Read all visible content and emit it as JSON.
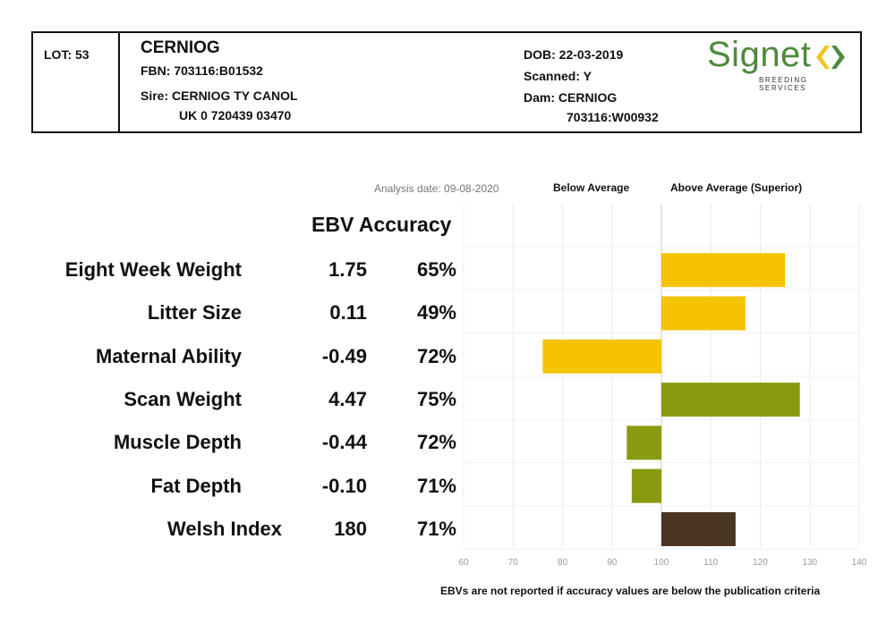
{
  "header": {
    "lot": "LOT: 53",
    "name": "CERNIOG",
    "fbn": "FBN: 703116:B01532",
    "sire": "Sire: CERNIOG TY CANOL",
    "sire_id": "UK 0 720439 03470",
    "dob": "DOB: 22-03-2019",
    "scanned": "Scanned: Y",
    "dam": "Dam: CERNIOG",
    "dam_id": "703116:W00932",
    "logo_word": "Signet",
    "logo_sub": "BREEDING SERVICES",
    "logo_green": "#4d8a3c",
    "logo_yellow": "#f0c419"
  },
  "analysis_date": "Analysis date: 09-08-2020",
  "below_label": "Below Average",
  "above_label": "Above Average (Superior)",
  "column_header": "EBV Accuracy",
  "footnote": "EBVs are not reported if accuracy values are below the publication criteria",
  "chart_data": {
    "type": "bar",
    "orientation": "horizontal",
    "baseline": 100,
    "xlim": [
      60,
      140
    ],
    "xticks": [
      "60",
      "70",
      "80",
      "90",
      "100",
      "110",
      "120",
      "130",
      "140"
    ],
    "grid": true,
    "categories": [
      "Eight Week Weight",
      "Litter Size",
      "Maternal Ability",
      "Scan Weight",
      "Muscle Depth",
      "Fat Depth",
      "Welsh Index"
    ],
    "ebv": [
      "1.75",
      "0.11",
      "-0.49",
      "4.47",
      "-0.44",
      "-0.10",
      "180"
    ],
    "accuracy": [
      "65%",
      "49%",
      "72%",
      "75%",
      "72%",
      "71%",
      "71%"
    ],
    "values": [
      125,
      117,
      76,
      128,
      93,
      94,
      115
    ],
    "colors": [
      "#f5c400",
      "#f5c400",
      "#f5c400",
      "#8a9a10",
      "#8a9a10",
      "#8a9a10",
      "#4a3422"
    ]
  }
}
